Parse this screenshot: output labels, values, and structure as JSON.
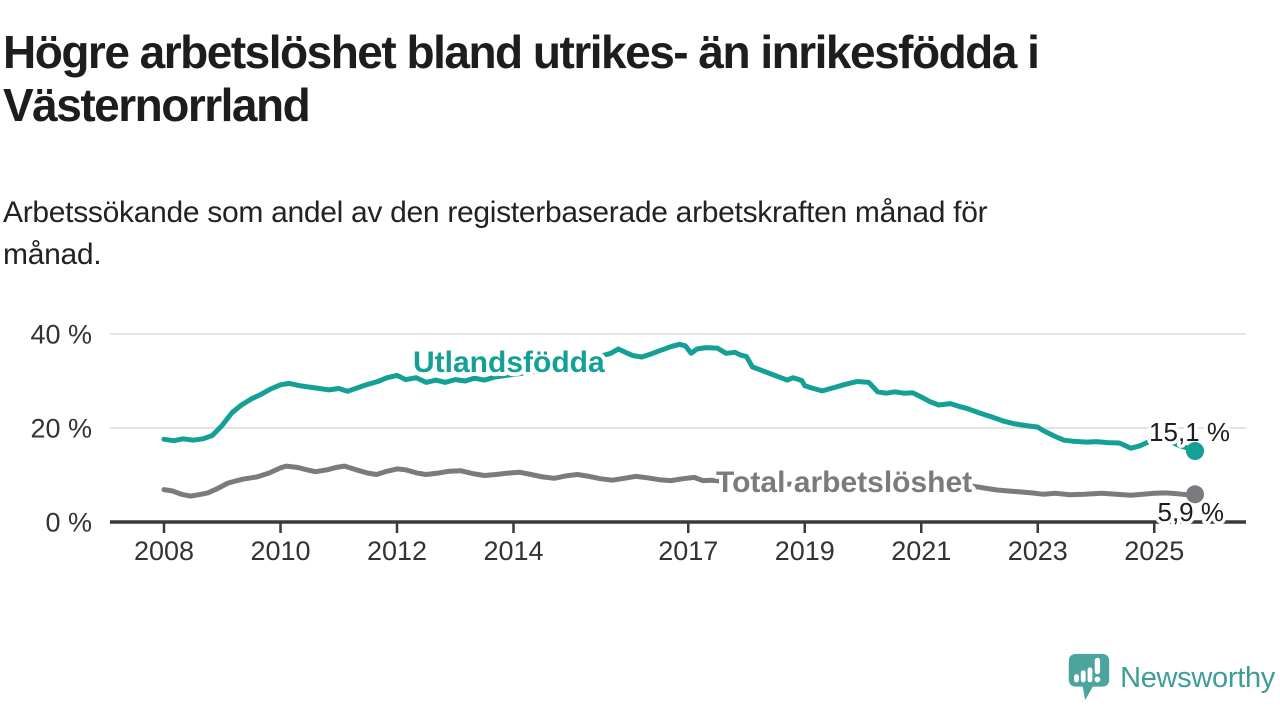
{
  "header": {
    "title_lines": [
      "Högre arbetslöshet bland utrikes- än inrikesfödda i",
      "Västernorrland"
    ],
    "subtitle_lines": [
      "Arbetssökande som andel av den registerbaserade arbetskraften månad för",
      "månad."
    ]
  },
  "colors": {
    "series_utlandsfodda": "#14A096",
    "series_total": "#7B7B7F",
    "gridline": "#E3E3E3",
    "axis": "#3A3A3A",
    "tick_text": "#333333",
    "title_text": "#1D1D1D",
    "brand_teal": "#4BA49E",
    "brand_text_teal": "#3F9D98"
  },
  "chart_data": {
    "type": "line",
    "title": "Högre arbetslöshet bland utrikes- än inrikesfödda i Västernorrland",
    "subtitle": "Arbetssökande som andel av den registerbaserade arbetskraften månad för månad.",
    "xlabel": "",
    "ylabel": "",
    "xlim": [
      2007.1,
      2026.6
    ],
    "ylim": [
      0,
      44
    ],
    "grid": "horizontal",
    "legend_position": "inline-labels",
    "x_axis": {
      "ticks": [
        {
          "v": 2008,
          "label": "2008"
        },
        {
          "v": 2010,
          "label": "2010"
        },
        {
          "v": 2012,
          "label": "2012"
        },
        {
          "v": 2014,
          "label": "2014"
        },
        {
          "v": 2017,
          "label": "2017"
        },
        {
          "v": 2019,
          "label": "2019"
        },
        {
          "v": 2021,
          "label": "2021"
        },
        {
          "v": 2023,
          "label": "2023"
        },
        {
          "v": 2025,
          "label": "2025"
        }
      ]
    },
    "y_axis": {
      "ticks": [
        {
          "v": 0,
          "label": "0 %"
        },
        {
          "v": 20,
          "label": "20 %"
        },
        {
          "v": 40,
          "label": "40 %"
        }
      ],
      "gridlines": [
        20,
        40
      ]
    },
    "series": [
      {
        "name": "Total arbetslöshet",
        "inline_label": "Total arbetslöshet",
        "end_label": "5,9 %",
        "end_value": 5.9,
        "color": "#7B7B7F",
        "points": [
          [
            2008.0,
            6.9
          ],
          [
            2008.15,
            6.6
          ],
          [
            2008.3,
            5.9
          ],
          [
            2008.45,
            5.5
          ],
          [
            2008.6,
            5.8
          ],
          [
            2008.75,
            6.2
          ],
          [
            2008.9,
            7.0
          ],
          [
            2009.1,
            8.3
          ],
          [
            2009.35,
            9.1
          ],
          [
            2009.6,
            9.6
          ],
          [
            2009.8,
            10.4
          ],
          [
            2010.0,
            11.5
          ],
          [
            2010.1,
            11.9
          ],
          [
            2010.3,
            11.6
          ],
          [
            2010.45,
            11.1
          ],
          [
            2010.6,
            10.7
          ],
          [
            2010.8,
            11.1
          ],
          [
            2010.95,
            11.6
          ],
          [
            2011.1,
            11.9
          ],
          [
            2011.3,
            11.1
          ],
          [
            2011.5,
            10.4
          ],
          [
            2011.65,
            10.1
          ],
          [
            2011.8,
            10.7
          ],
          [
            2012.0,
            11.3
          ],
          [
            2012.15,
            11.1
          ],
          [
            2012.35,
            10.4
          ],
          [
            2012.5,
            10.1
          ],
          [
            2012.7,
            10.4
          ],
          [
            2012.9,
            10.8
          ],
          [
            2013.1,
            10.9
          ],
          [
            2013.3,
            10.3
          ],
          [
            2013.5,
            9.9
          ],
          [
            2013.7,
            10.1
          ],
          [
            2013.9,
            10.4
          ],
          [
            2014.1,
            10.6
          ],
          [
            2014.3,
            10.1
          ],
          [
            2014.5,
            9.6
          ],
          [
            2014.7,
            9.3
          ],
          [
            2014.9,
            9.8
          ],
          [
            2015.1,
            10.1
          ],
          [
            2015.3,
            9.7
          ],
          [
            2015.5,
            9.2
          ],
          [
            2015.7,
            8.9
          ],
          [
            2015.9,
            9.3
          ],
          [
            2016.1,
            9.7
          ],
          [
            2016.3,
            9.4
          ],
          [
            2016.5,
            9.0
          ],
          [
            2016.7,
            8.8
          ],
          [
            2016.9,
            9.2
          ],
          [
            2017.1,
            9.5
          ],
          [
            2017.25,
            8.8
          ],
          [
            2017.4,
            8.9
          ],
          [
            2017.7,
            8.6
          ],
          [
            2018.0,
            8.8
          ],
          [
            2018.3,
            8.3
          ],
          [
            2018.6,
            8.0
          ],
          [
            2019.0,
            8.2
          ],
          [
            2019.4,
            7.8
          ],
          [
            2019.8,
            7.9
          ],
          [
            2020.2,
            8.8
          ],
          [
            2020.5,
            9.6
          ],
          [
            2020.8,
            9.4
          ],
          [
            2021.1,
            9.0
          ],
          [
            2021.5,
            8.4
          ],
          [
            2021.9,
            7.6
          ],
          [
            2022.2,
            7.0
          ],
          [
            2022.3,
            6.8
          ],
          [
            2022.5,
            6.6
          ],
          [
            2022.7,
            6.4
          ],
          [
            2022.9,
            6.2
          ],
          [
            2023.1,
            5.9
          ],
          [
            2023.3,
            6.1
          ],
          [
            2023.55,
            5.8
          ],
          [
            2023.8,
            5.9
          ],
          [
            2024.1,
            6.1
          ],
          [
            2024.35,
            5.9
          ],
          [
            2024.6,
            5.7
          ],
          [
            2024.8,
            5.9
          ],
          [
            2025.0,
            6.1
          ],
          [
            2025.2,
            6.2
          ],
          [
            2025.4,
            6.0
          ],
          [
            2025.55,
            5.8
          ],
          [
            2025.7,
            5.9
          ]
        ]
      },
      {
        "name": "Utlandsfödda",
        "inline_label": "Utlandsfödda",
        "end_label": "15,1 %",
        "end_value": 15.1,
        "color": "#14A096",
        "points": [
          [
            2008.0,
            17.6
          ],
          [
            2008.17,
            17.3
          ],
          [
            2008.33,
            17.7
          ],
          [
            2008.5,
            17.4
          ],
          [
            2008.67,
            17.7
          ],
          [
            2008.83,
            18.4
          ],
          [
            2009.0,
            20.6
          ],
          [
            2009.17,
            23.3
          ],
          [
            2009.33,
            24.9
          ],
          [
            2009.5,
            26.2
          ],
          [
            2009.67,
            27.2
          ],
          [
            2009.83,
            28.3
          ],
          [
            2010.0,
            29.2
          ],
          [
            2010.15,
            29.5
          ],
          [
            2010.33,
            29.0
          ],
          [
            2010.5,
            28.7
          ],
          [
            2010.67,
            28.4
          ],
          [
            2010.83,
            28.1
          ],
          [
            2011.0,
            28.4
          ],
          [
            2011.15,
            27.8
          ],
          [
            2011.33,
            28.6
          ],
          [
            2011.5,
            29.3
          ],
          [
            2011.67,
            29.9
          ],
          [
            2011.83,
            30.7
          ],
          [
            2012.0,
            31.2
          ],
          [
            2012.15,
            30.3
          ],
          [
            2012.33,
            30.7
          ],
          [
            2012.5,
            29.7
          ],
          [
            2012.67,
            30.2
          ],
          [
            2012.83,
            29.7
          ],
          [
            2013.0,
            30.3
          ],
          [
            2013.17,
            30.0
          ],
          [
            2013.33,
            30.6
          ],
          [
            2013.5,
            30.2
          ],
          [
            2013.67,
            30.8
          ],
          [
            2013.83,
            31.1
          ],
          [
            2014.0,
            31.4
          ],
          [
            2014.25,
            31.8
          ],
          [
            2014.5,
            32.3
          ],
          [
            2014.75,
            33.1
          ],
          [
            2015.0,
            33.8
          ],
          [
            2015.25,
            34.6
          ],
          [
            2015.5,
            35.3
          ],
          [
            2015.67,
            35.9
          ],
          [
            2015.8,
            36.8
          ],
          [
            2015.92,
            36.1
          ],
          [
            2016.05,
            35.4
          ],
          [
            2016.2,
            35.1
          ],
          [
            2016.35,
            35.7
          ],
          [
            2016.5,
            36.4
          ],
          [
            2016.7,
            37.3
          ],
          [
            2016.85,
            37.8
          ],
          [
            2016.95,
            37.5
          ],
          [
            2017.05,
            35.9
          ],
          [
            2017.15,
            36.8
          ],
          [
            2017.3,
            37.1
          ],
          [
            2017.5,
            37.0
          ],
          [
            2017.65,
            35.9
          ],
          [
            2017.8,
            36.1
          ],
          [
            2017.9,
            35.5
          ],
          [
            2018.0,
            35.2
          ],
          [
            2018.1,
            33.0
          ],
          [
            2018.25,
            32.3
          ],
          [
            2018.4,
            31.6
          ],
          [
            2018.55,
            30.9
          ],
          [
            2018.7,
            30.2
          ],
          [
            2018.8,
            30.7
          ],
          [
            2018.95,
            30.1
          ],
          [
            2019.0,
            29.0
          ],
          [
            2019.15,
            28.4
          ],
          [
            2019.3,
            27.9
          ],
          [
            2019.5,
            28.6
          ],
          [
            2019.7,
            29.3
          ],
          [
            2019.9,
            29.9
          ],
          [
            2020.1,
            29.7
          ],
          [
            2020.25,
            27.7
          ],
          [
            2020.4,
            27.4
          ],
          [
            2020.55,
            27.7
          ],
          [
            2020.7,
            27.4
          ],
          [
            2020.85,
            27.5
          ],
          [
            2021.0,
            26.6
          ],
          [
            2021.15,
            25.6
          ],
          [
            2021.3,
            24.9
          ],
          [
            2021.5,
            25.2
          ],
          [
            2021.65,
            24.6
          ],
          [
            2021.8,
            24.1
          ],
          [
            2022.0,
            23.2
          ],
          [
            2022.2,
            22.4
          ],
          [
            2022.4,
            21.5
          ],
          [
            2022.6,
            20.9
          ],
          [
            2022.8,
            20.5
          ],
          [
            2023.0,
            20.2
          ],
          [
            2023.1,
            19.4
          ],
          [
            2023.3,
            18.2
          ],
          [
            2023.45,
            17.4
          ],
          [
            2023.6,
            17.2
          ],
          [
            2023.85,
            17.0
          ],
          [
            2024.0,
            17.1
          ],
          [
            2024.2,
            16.9
          ],
          [
            2024.4,
            16.8
          ],
          [
            2024.6,
            15.7
          ],
          [
            2024.75,
            16.2
          ],
          [
            2025.0,
            17.6
          ],
          [
            2025.1,
            18.0
          ],
          [
            2025.25,
            17.4
          ],
          [
            2025.4,
            16.4
          ],
          [
            2025.55,
            15.8
          ],
          [
            2025.7,
            15.1
          ]
        ]
      }
    ]
  },
  "footer": {
    "brand": "Newsworthy"
  }
}
